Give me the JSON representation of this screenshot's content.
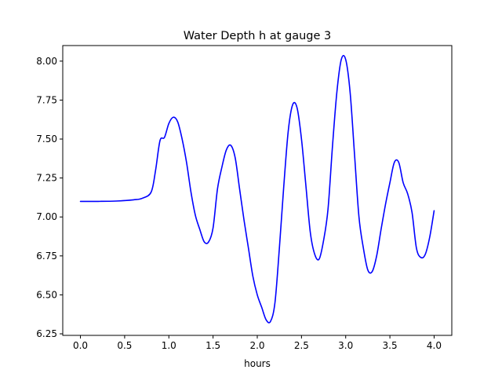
{
  "chart_data": {
    "type": "line",
    "title": "Water Depth h at gauge 3",
    "xlabel": "hours",
    "ylabel": "",
    "xlim": [
      -0.2,
      4.2
    ],
    "ylim": [
      6.24,
      8.1
    ],
    "xticks": [
      0.0,
      0.5,
      1.0,
      1.5,
      2.0,
      2.5,
      3.0,
      3.5,
      4.0
    ],
    "xtick_labels": [
      "0.0",
      "0.5",
      "1.0",
      "1.5",
      "2.0",
      "2.5",
      "3.0",
      "3.5",
      "4.0"
    ],
    "yticks": [
      6.25,
      6.5,
      6.75,
      7.0,
      7.25,
      7.5,
      7.75,
      8.0
    ],
    "ytick_labels": [
      "6.25",
      "6.50",
      "6.75",
      "7.00",
      "7.25",
      "7.50",
      "7.75",
      "8.00"
    ],
    "grid": false,
    "series": [
      {
        "color": "#0000ff",
        "points": [
          [
            0.0,
            7.1
          ],
          [
            0.2,
            7.1
          ],
          [
            0.4,
            7.102
          ],
          [
            0.6,
            7.11
          ],
          [
            0.7,
            7.12
          ],
          [
            0.8,
            7.16
          ],
          [
            0.85,
            7.3
          ],
          [
            0.9,
            7.49
          ],
          [
            0.95,
            7.51
          ],
          [
            1.0,
            7.6
          ],
          [
            1.05,
            7.64
          ],
          [
            1.1,
            7.61
          ],
          [
            1.15,
            7.5
          ],
          [
            1.2,
            7.35
          ],
          [
            1.25,
            7.16
          ],
          [
            1.3,
            7.01
          ],
          [
            1.35,
            6.92
          ],
          [
            1.4,
            6.84
          ],
          [
            1.45,
            6.84
          ],
          [
            1.5,
            6.93
          ],
          [
            1.55,
            7.18
          ],
          [
            1.6,
            7.32
          ],
          [
            1.65,
            7.43
          ],
          [
            1.7,
            7.46
          ],
          [
            1.75,
            7.38
          ],
          [
            1.8,
            7.18
          ],
          [
            1.85,
            6.98
          ],
          [
            1.9,
            6.8
          ],
          [
            1.95,
            6.62
          ],
          [
            2.0,
            6.5
          ],
          [
            2.05,
            6.42
          ],
          [
            2.1,
            6.34
          ],
          [
            2.15,
            6.33
          ],
          [
            2.2,
            6.45
          ],
          [
            2.25,
            6.8
          ],
          [
            2.3,
            7.2
          ],
          [
            2.35,
            7.55
          ],
          [
            2.4,
            7.72
          ],
          [
            2.45,
            7.7
          ],
          [
            2.5,
            7.5
          ],
          [
            2.55,
            7.2
          ],
          [
            2.6,
            6.9
          ],
          [
            2.65,
            6.76
          ],
          [
            2.7,
            6.73
          ],
          [
            2.75,
            6.85
          ],
          [
            2.8,
            7.05
          ],
          [
            2.85,
            7.45
          ],
          [
            2.9,
            7.8
          ],
          [
            2.95,
            8.01
          ],
          [
            3.0,
            8.01
          ],
          [
            3.05,
            7.8
          ],
          [
            3.1,
            7.4
          ],
          [
            3.15,
            7.0
          ],
          [
            3.2,
            6.8
          ],
          [
            3.25,
            6.66
          ],
          [
            3.3,
            6.65
          ],
          [
            3.35,
            6.75
          ],
          [
            3.4,
            6.92
          ],
          [
            3.45,
            7.08
          ],
          [
            3.5,
            7.22
          ],
          [
            3.55,
            7.35
          ],
          [
            3.6,
            7.35
          ],
          [
            3.65,
            7.22
          ],
          [
            3.7,
            7.15
          ],
          [
            3.75,
            7.03
          ],
          [
            3.8,
            6.8
          ],
          [
            3.85,
            6.74
          ],
          [
            3.9,
            6.76
          ],
          [
            3.95,
            6.87
          ],
          [
            4.0,
            7.04
          ]
        ]
      }
    ]
  }
}
